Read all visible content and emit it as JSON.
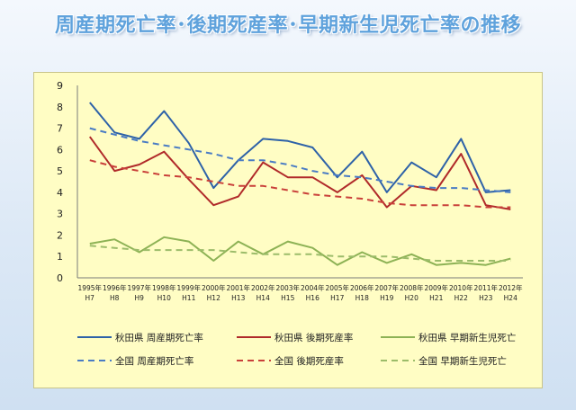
{
  "title": "周産期死亡率･後期死産率･早期新生児死亡率の推移",
  "chart_data": {
    "type": "line",
    "categories": [
      [
        "1995年",
        "H7"
      ],
      [
        "1996年",
        "H8"
      ],
      [
        "1997年",
        "H9"
      ],
      [
        "1998年",
        "H10"
      ],
      [
        "1999年",
        "H11"
      ],
      [
        "2000年",
        "H12"
      ],
      [
        "2001年",
        "H13"
      ],
      [
        "2002年",
        "H14"
      ],
      [
        "2003年",
        "H15"
      ],
      [
        "2004年",
        "H16"
      ],
      [
        "2005年",
        "H17"
      ],
      [
        "2006年",
        "H18"
      ],
      [
        "2007年",
        "H19"
      ],
      [
        "2008年",
        "H20"
      ],
      [
        "2009年",
        "H21"
      ],
      [
        "2010年",
        "H22"
      ],
      [
        "2011年",
        "H23"
      ],
      [
        "2012年",
        "H24"
      ]
    ],
    "ylim": [
      0,
      9
    ],
    "yticks": [
      0,
      1,
      2,
      3,
      4,
      5,
      6,
      7,
      8,
      9
    ],
    "grid": false,
    "legend_position": "bottom",
    "series": [
      {
        "name": "秋田県 周産期死亡率",
        "color": "#2e62a8",
        "dash": false,
        "values": [
          8.2,
          6.8,
          6.5,
          7.8,
          6.3,
          4.2,
          5.5,
          6.5,
          6.4,
          6.1,
          4.7,
          5.9,
          4.0,
          5.4,
          4.7,
          6.5,
          4.0,
          4.1
        ]
      },
      {
        "name": "秋田県 後期死産率",
        "color": "#b02a2a",
        "dash": false,
        "values": [
          6.6,
          5.0,
          5.3,
          5.9,
          4.6,
          3.4,
          3.8,
          5.4,
          4.7,
          4.7,
          4.0,
          4.8,
          3.3,
          4.3,
          4.1,
          5.8,
          3.4,
          3.2
        ]
      },
      {
        "name": "秋田県 早期新生児死亡",
        "color": "#8db255",
        "dash": false,
        "values": [
          1.6,
          1.8,
          1.2,
          1.9,
          1.7,
          0.8,
          1.7,
          1.1,
          1.7,
          1.4,
          0.6,
          1.2,
          0.7,
          1.1,
          0.6,
          0.7,
          0.6,
          0.9
        ]
      },
      {
        "name": "全国 周産期死亡率",
        "color": "#4a7cc4",
        "dash": true,
        "values": [
          7.0,
          6.7,
          6.4,
          6.2,
          6.0,
          5.8,
          5.5,
          5.5,
          5.3,
          5.0,
          4.8,
          4.7,
          4.5,
          4.3,
          4.2,
          4.2,
          4.1,
          4.0
        ]
      },
      {
        "name": "全国 後期死産率",
        "color": "#c9403a",
        "dash": true,
        "values": [
          5.5,
          5.2,
          5.0,
          4.8,
          4.7,
          4.5,
          4.3,
          4.3,
          4.1,
          3.9,
          3.8,
          3.7,
          3.5,
          3.4,
          3.4,
          3.4,
          3.3,
          3.3
        ]
      },
      {
        "name": "全国 早期新生児死亡",
        "color": "#9cbc6a",
        "dash": true,
        "values": [
          1.5,
          1.4,
          1.3,
          1.3,
          1.3,
          1.3,
          1.2,
          1.1,
          1.1,
          1.1,
          1.0,
          1.0,
          1.0,
          0.9,
          0.8,
          0.8,
          0.8,
          0.8
        ]
      }
    ]
  }
}
